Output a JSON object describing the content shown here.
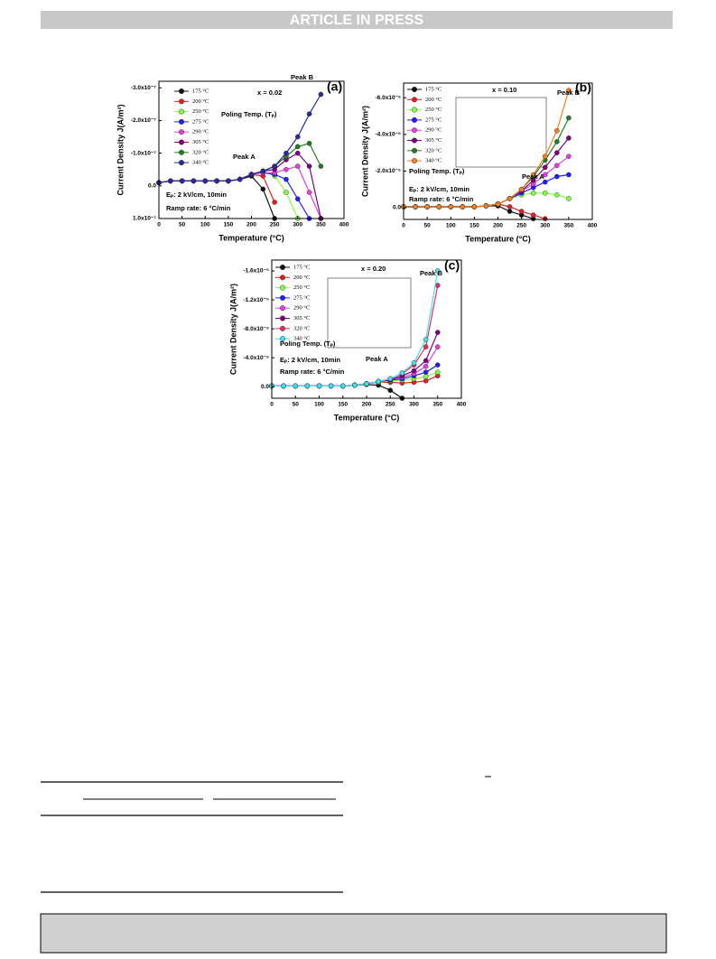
{
  "header": {
    "banner": "ARTICLE IN PRESS"
  },
  "figure": {
    "panels": [
      {
        "type": "line",
        "label": "(a)",
        "xlabel": "Temperature (°C)",
        "ylabel": "Current Density J(A/m²)",
        "annotations": [
          "x = 0.02",
          "Peak A",
          "Peak B",
          "Poling Temp. (Tₚ)",
          "Eₚ: 2 kV/cm, 10min",
          "Ramp rate: 6 °C/min"
        ],
        "xlim": [
          0,
          400
        ],
        "xticks": [
          0,
          50,
          100,
          150,
          200,
          250,
          300,
          350,
          400
        ],
        "ylim": [
          1e-07,
          -3.2e-07
        ],
        "yticks": [
          {
            "value": 1e-07,
            "label": "1.0x10⁻⁷"
          },
          {
            "value": 0,
            "label": "0.0"
          },
          {
            "value": -1e-07,
            "label": "-1.0x10⁻⁷"
          },
          {
            "value": -2e-07,
            "label": "-2.0x10⁻⁷"
          },
          {
            "value": -3e-07,
            "label": "-3.0x10⁻⁷"
          }
        ],
        "x": [
          0,
          25,
          50,
          75,
          100,
          125,
          150,
          175,
          200,
          225,
          250,
          275,
          300,
          325,
          350
        ],
        "series": [
          {
            "name": "175 °C",
            "color": "#111111",
            "values": [
              -1e-08,
              -1.5e-08,
              -1.5e-08,
              -1.5e-08,
              -1.5e-08,
              -1.5e-08,
              -1.5e-08,
              -2e-08,
              -3e-08,
              1e-08,
              1e-07,
              null,
              null,
              null,
              null
            ]
          },
          {
            "name": "200 °C",
            "color": "#e02020",
            "values": [
              -1e-08,
              -1.5e-08,
              -1.5e-08,
              -1.5e-08,
              -1.5e-08,
              -1.5e-08,
              -1.5e-08,
              -2e-08,
              -3.5e-08,
              -3e-08,
              5e-08,
              null,
              null,
              null,
              null
            ]
          },
          {
            "name": "250 °C",
            "color": "#80ff40",
            "values": [
              -1e-08,
              -1.5e-08,
              -1.5e-08,
              -1.5e-08,
              -1.5e-08,
              -1.5e-08,
              -1.5e-08,
              -2e-08,
              -3.5e-08,
              -4.5e-08,
              -3e-08,
              2e-08,
              1e-07,
              null,
              null
            ]
          },
          {
            "name": "275 °C",
            "color": "#2020ff",
            "values": [
              -1e-08,
              -1.5e-08,
              -1.5e-08,
              -1.5e-08,
              -1.5e-08,
              -1.5e-08,
              -1.5e-08,
              -2e-08,
              -3.5e-08,
              -4e-08,
              -3.5e-08,
              -2e-08,
              4e-08,
              1e-07,
              null
            ]
          },
          {
            "name": "290 °C",
            "color": "#e040e0",
            "values": [
              -1e-08,
              -1.5e-08,
              -1.5e-08,
              -1.5e-08,
              -1.5e-08,
              -1.5e-08,
              -1.5e-08,
              -2e-08,
              -3.5e-08,
              -4e-08,
              -4e-08,
              -5e-08,
              -6e-08,
              2e-08,
              1e-07
            ]
          },
          {
            "name": "305 °C",
            "color": "#800080",
            "values": [
              -1e-08,
              -1.5e-08,
              -1.5e-08,
              -1.5e-08,
              -1.5e-08,
              -1.5e-08,
              -1.5e-08,
              -2e-08,
              -3.5e-08,
              -4.5e-08,
              -5e-08,
              -8e-08,
              -1e-07,
              -6e-08,
              1e-07
            ]
          },
          {
            "name": "320 °C",
            "color": "#208020",
            "values": [
              -1e-08,
              -1.5e-08,
              -1.5e-08,
              -1.5e-08,
              -1.5e-08,
              -1.5e-08,
              -1.5e-08,
              -2e-08,
              -3.5e-08,
              -4.5e-08,
              -6e-08,
              -9e-08,
              -1.2e-07,
              -1.3e-07,
              -6e-08
            ]
          },
          {
            "name": "340 °C",
            "color": "#2a2aa0",
            "values": [
              -1e-08,
              -1.5e-08,
              -1.5e-08,
              -1.5e-08,
              -1.5e-08,
              -1.5e-08,
              -1.5e-08,
              -2e-08,
              -3.5e-08,
              -4.5e-08,
              -6e-08,
              -1e-07,
              -1.5e-07,
              -2.2e-07,
              -2.8e-07
            ]
          }
        ]
      },
      {
        "type": "line",
        "label": "(b)",
        "xlabel": "Temperature (°C)",
        "ylabel": "Current Density J(A/m²)",
        "annotations": [
          "x = 0.10",
          "Peak A",
          "Peak B",
          "Poling Temp. (Tₚ)",
          "Eₚ: 2 kV/cm, 10min",
          "Ramp rate: 6 °C/min"
        ],
        "xlim": [
          0,
          400
        ],
        "xticks": [
          0,
          50,
          100,
          150,
          200,
          250,
          300,
          350,
          400
        ],
        "ylim": [
          6.4e-07,
          -6.8e-06
        ],
        "yticks": [
          {
            "value": 0,
            "label": "0.0"
          },
          {
            "value": -2e-06,
            "label": "-2.0x10⁻⁶"
          },
          {
            "value": -4e-06,
            "label": "-4.0x10⁻⁶"
          },
          {
            "value": -6e-06,
            "label": "-6.0x10⁻⁶"
          }
        ],
        "x": [
          0,
          25,
          50,
          75,
          100,
          125,
          150,
          175,
          200,
          225,
          250,
          275,
          300,
          325,
          350
        ],
        "series": [
          {
            "name": "175 °C",
            "color": "#111111",
            "values": [
              -5e-08,
              -5e-08,
              -5e-08,
              -5e-08,
              -5e-08,
              -5e-08,
              -5e-08,
              -1e-07,
              -1e-07,
              2e-07,
              4e-07,
              6e-07,
              null,
              null,
              null
            ]
          },
          {
            "name": "200 °C",
            "color": "#e02020",
            "values": [
              -5e-08,
              -5e-08,
              -5e-08,
              -5e-08,
              -5e-08,
              -5e-08,
              -5e-08,
              -1e-07,
              -2e-07,
              -5e-08,
              2e-07,
              4e-07,
              6e-07,
              null,
              null
            ]
          },
          {
            "name": "250 °C",
            "color": "#80ff40",
            "values": [
              -5e-08,
              -5e-08,
              -5e-08,
              -5e-08,
              -5e-08,
              -5e-08,
              -5e-08,
              -1e-07,
              -2e-07,
              -5e-07,
              -7e-07,
              -8e-07,
              -8e-07,
              -7e-07,
              -5e-07
            ]
          },
          {
            "name": "275 °C",
            "color": "#2020ff",
            "values": [
              -5e-08,
              -5e-08,
              -5e-08,
              -5e-08,
              -5e-08,
              -5e-08,
              -5e-08,
              -1e-07,
              -2e-07,
              -5e-07,
              -8e-07,
              -1.1e-06,
              -1.4e-06,
              -1.7e-06,
              -1.8e-06
            ]
          },
          {
            "name": "290 °C",
            "color": "#e040e0",
            "values": [
              -5e-08,
              -5e-08,
              -5e-08,
              -5e-08,
              -5e-08,
              -5e-08,
              -5e-08,
              -1e-07,
              -2e-07,
              -5e-07,
              -9e-07,
              -1.3e-06,
              -1.8e-06,
              -2.3e-06,
              -2.8e-06
            ]
          },
          {
            "name": "305 °C",
            "color": "#800080",
            "values": [
              -5e-08,
              -5e-08,
              -5e-08,
              -5e-08,
              -5e-08,
              -5e-08,
              -5e-08,
              -1e-07,
              -2e-07,
              -5e-07,
              -9e-07,
              -1.5e-06,
              -2.2e-06,
              -3e-06,
              -3.8e-06
            ]
          },
          {
            "name": "320 °C",
            "color": "#208020",
            "values": [
              -5e-08,
              -5e-08,
              -5e-08,
              -5e-08,
              -5e-08,
              -5e-08,
              -5e-08,
              -1e-07,
              -2e-07,
              -5e-07,
              -1e-06,
              -1.7e-06,
              -2.6e-06,
              -3.6e-06,
              -4.9e-06
            ]
          },
          {
            "name": "340 °C",
            "color": "#f08020",
            "values": [
              -5e-08,
              -5e-08,
              -5e-08,
              -5e-08,
              -5e-08,
              -5e-08,
              -5e-08,
              -1e-07,
              -2e-07,
              -5e-07,
              -1e-06,
              -1.8e-06,
              -2.8e-06,
              -4.2e-06,
              -6.4e-06
            ]
          }
        ]
      },
      {
        "type": "line",
        "label": "(c)",
        "xlabel": "Temperature (°C)",
        "ylabel": "Current Density J(A/m²)",
        "annotations": [
          "x = 0.20",
          "Peak A",
          "Peak B",
          "Poling Temp. (Tₚ)",
          "Eₚ: 2 kV/cm, 10min",
          "Ramp rate: 6 °C/min"
        ],
        "xlim": [
          0,
          400
        ],
        "xticks": [
          0,
          50,
          100,
          150,
          200,
          250,
          300,
          350,
          400
        ],
        "ylim": [
          1.6e-06,
          -1.75e-05
        ],
        "yticks": [
          {
            "value": 0,
            "label": "0.0"
          },
          {
            "value": -4e-06,
            "label": "-4.0x10⁻⁶"
          },
          {
            "value": -8e-06,
            "label": "-8.0x10⁻⁶"
          },
          {
            "value": -1.2e-05,
            "label": "-1.2x10⁻⁵"
          },
          {
            "value": -1.6e-05,
            "label": "-1.6x10⁻⁵"
          }
        ],
        "x": [
          0,
          25,
          50,
          75,
          100,
          125,
          150,
          175,
          200,
          225,
          250,
          275,
          300,
          325,
          350
        ],
        "series": [
          {
            "name": "175 °C",
            "color": "#111111",
            "values": [
              -1e-07,
              -1e-07,
              -1e-07,
              -1e-07,
              -1e-07,
              -1e-07,
              -1e-07,
              -2e-07,
              -3e-07,
              -2e-07,
              5e-07,
              1.6e-06,
              null,
              null,
              null
            ]
          },
          {
            "name": "200 °C",
            "color": "#e02020",
            "values": [
              -1e-07,
              -1e-07,
              -1e-07,
              -1e-07,
              -1e-07,
              -1e-07,
              -1e-07,
              -2e-07,
              -4e-07,
              -6e-07,
              -6e-07,
              -5e-07,
              -6e-07,
              -8e-07,
              -1.5e-06
            ]
          },
          {
            "name": "250 °C",
            "color": "#80ff40",
            "values": [
              -1e-07,
              -1e-07,
              -1e-07,
              -1e-07,
              -1e-07,
              -1e-07,
              -1e-07,
              -2e-07,
              -4e-07,
              -6e-07,
              -8e-07,
              -9e-07,
              -1.1e-06,
              -1.4e-06,
              -2e-06
            ]
          },
          {
            "name": "275 °C",
            "color": "#2020ff",
            "values": [
              -1e-07,
              -1e-07,
              -1e-07,
              -1e-07,
              -1e-07,
              -1e-07,
              -1e-07,
              -2e-07,
              -4e-07,
              -7e-07,
              -9e-07,
              -1.1e-06,
              -1.5e-06,
              -2e-06,
              -3e-06
            ]
          },
          {
            "name": "290 °C",
            "color": "#e040e0",
            "values": [
              -1e-07,
              -1e-07,
              -1e-07,
              -1e-07,
              -1e-07,
              -1e-07,
              -1e-07,
              -2e-07,
              -4e-07,
              -7e-07,
              -1e-06,
              -1.3e-06,
              -1.8e-06,
              -2.8e-06,
              -5.5e-06
            ]
          },
          {
            "name": "305 °C",
            "color": "#800080",
            "values": [
              -1e-07,
              -1e-07,
              -1e-07,
              -1e-07,
              -1e-07,
              -1e-07,
              -1e-07,
              -2e-07,
              -4e-07,
              -7e-07,
              -1e-06,
              -1.5e-06,
              -2.2e-06,
              -3.6e-06,
              -7.5e-06
            ]
          },
          {
            "name": "320 °C",
            "color": "#e03060",
            "values": [
              -1e-07,
              -1e-07,
              -1e-07,
              -1e-07,
              -1e-07,
              -1e-07,
              -1e-07,
              -2e-07,
              -4e-07,
              -7e-07,
              -1.1e-06,
              -1.8e-06,
              -3e-06,
              -5.5e-06,
              -1.4e-05
            ]
          },
          {
            "name": "340 °C",
            "color": "#40e0f0",
            "values": [
              -1e-07,
              -1e-07,
              -1e-07,
              -1e-07,
              -1e-07,
              -1e-07,
              -1e-07,
              -2e-07,
              -4e-07,
              -7e-07,
              -1.1e-06,
              -1.9e-06,
              -3.3e-06,
              -6.5e-06,
              -1.6e-05
            ]
          }
        ]
      }
    ]
  }
}
